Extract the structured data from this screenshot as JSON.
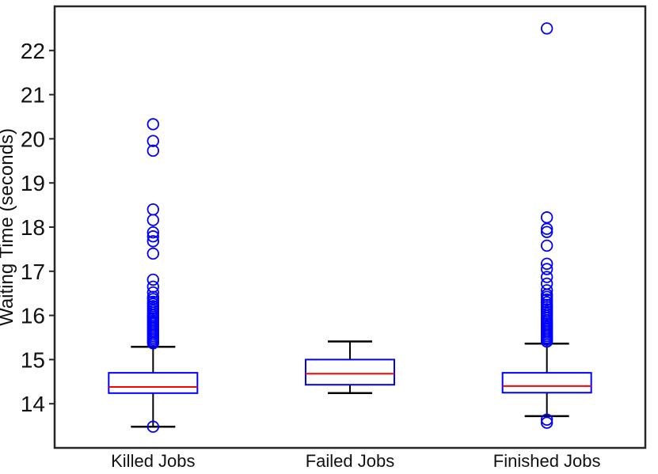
{
  "figure": {
    "background": "#ffffff"
  },
  "chart_data": {
    "type": "boxplot",
    "title": "",
    "xlabel": "",
    "ylabel": "Waiting Time (seconds)",
    "ylim": [
      13,
      23
    ],
    "yticks": [
      14,
      15,
      16,
      17,
      18,
      19,
      20,
      21,
      22
    ],
    "grid": false,
    "legend": "none",
    "frame": "box-on",
    "categories": [
      "Killed Jobs",
      "Failed Jobs",
      "Finished Jobs"
    ],
    "colors": {
      "box": "#0000ff",
      "median": "#ff0000",
      "whisker": "#000000",
      "outlier": "#0000ff",
      "frame": "#262626",
      "text": "#111111"
    },
    "series": [
      {
        "name": "Killed Jobs",
        "q1": 14.24,
        "median": 14.38,
        "q3": 14.7,
        "whisker_low": 13.48,
        "whisker_high": 15.29,
        "outliers": [
          20.33,
          19.95,
          19.73,
          18.4,
          18.16,
          17.88,
          17.79,
          17.68,
          17.4,
          16.81,
          16.65,
          16.52,
          16.42,
          16.37,
          16.31,
          16.26,
          16.21,
          16.16,
          16.11,
          16.06,
          16.01,
          15.97,
          15.93,
          15.89,
          15.85,
          15.81,
          15.77,
          15.73,
          15.69,
          15.65,
          15.61,
          15.57,
          15.53,
          15.49,
          15.45,
          15.41,
          15.37,
          13.48
        ]
      },
      {
        "name": "Failed Jobs",
        "q1": 14.43,
        "median": 14.68,
        "q3": 15.0,
        "whisker_low": 14.24,
        "whisker_high": 15.41,
        "outliers": []
      },
      {
        "name": "Finished Jobs",
        "q1": 14.25,
        "median": 14.4,
        "q3": 14.7,
        "whisker_low": 13.72,
        "whisker_high": 15.36,
        "outliers": [
          22.5,
          18.22,
          17.96,
          17.89,
          17.58,
          17.17,
          17.05,
          16.87,
          16.72,
          16.57,
          16.47,
          16.42,
          16.36,
          16.3,
          16.24,
          16.19,
          16.14,
          16.09,
          16.04,
          15.99,
          15.94,
          15.89,
          15.85,
          15.81,
          15.77,
          15.73,
          15.69,
          15.65,
          15.61,
          15.57,
          15.53,
          15.49,
          15.45,
          15.41,
          13.64,
          13.57
        ]
      }
    ]
  }
}
